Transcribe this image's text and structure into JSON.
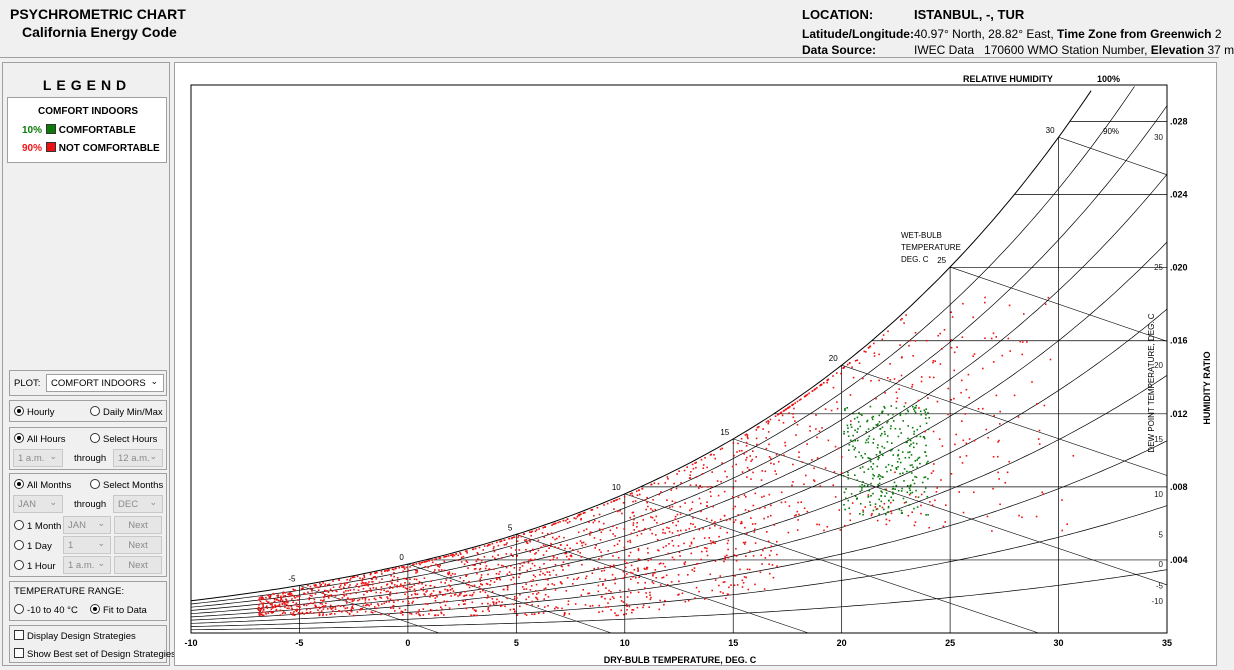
{
  "header": {
    "title_line1": "PSYCHROMETRIC CHART",
    "title_line2": "California Energy Code",
    "location_label": "LOCATION:",
    "location_value": "ISTANBUL, -, TUR",
    "latlon_label": "Latitude/Longitude:",
    "latlon_value": "40.97° North, 28.82° East,",
    "tz_label": "Time Zone from Greenwich",
    "tz_value": "2",
    "source_label": "Data Source:",
    "source_value": "IWEC Data",
    "station_value": "170600 WMO Station Number,",
    "elevation_label": "Elevation",
    "elevation_value": "37 m"
  },
  "legend": {
    "title": "LEGEND",
    "heading": "COMFORT INDOORS",
    "items": [
      {
        "pct": "10%",
        "label": "COMFORTABLE",
        "color": "#0b7a0b"
      },
      {
        "pct": "90%",
        "label": "NOT COMFORTABLE",
        "color": "#ee1111"
      }
    ]
  },
  "controls": {
    "plot_label": "PLOT:",
    "plot_value": "COMFORT INDOORS",
    "hourly": "Hourly",
    "daily": "Daily Min/Max",
    "all_hours": "All Hours",
    "select_hours": "Select Hours",
    "hour_from": "1 a.m.",
    "through": "through",
    "hour_to": "12 a.m.",
    "all_months": "All Months",
    "select_months": "Select Months",
    "month_from": "JAN",
    "month_to": "DEC",
    "one_month": "1 Month",
    "one_month_val": "JAN",
    "one_day": "1 Day",
    "one_day_val": "1",
    "one_hour": "1 Hour",
    "one_hour_val": "1 a.m.",
    "next": "Next",
    "temp_range_label": "TEMPERATURE RANGE:",
    "range_a": "-10 to 40 °C",
    "range_b": "Fit to Data",
    "design_strategies": "Display Design Strategies",
    "best_set": "Show Best set of Design Strategies"
  },
  "chart_data": {
    "type": "scatter",
    "xlabel": "DRY-BULB TEMPERATURE, DEG. C",
    "ylabel": "HUMIDITY RATIO",
    "dewpoint_label": "DEW POINT TEMPERATURE, DEG. C",
    "rh_label": "RELATIVE HUMIDITY",
    "rh_100": "100%",
    "rh_90": "90%",
    "wetbulb_label": [
      "WET-BULB",
      "TEMPERATURE",
      "DEG. C"
    ],
    "xlim": [
      -10,
      35
    ],
    "ylim": [
      0,
      0.03
    ],
    "x_ticks": [
      "-10",
      "-5",
      "0",
      "5",
      "10",
      "15",
      "20",
      "25",
      "30",
      "35"
    ],
    "y_ticks": [
      ".004",
      ".008",
      ".012",
      ".016",
      ".020",
      ".024",
      ".028"
    ],
    "wetbulb_ticks": [
      "-5",
      "0",
      "5",
      "10",
      "15",
      "20",
      "25",
      "30"
    ],
    "dewpoint_ticks": [
      "-10",
      "-5",
      "0",
      "5",
      "10",
      "15",
      "20",
      "25",
      "30"
    ],
    "series": [
      {
        "name": "COMFORTABLE",
        "color": "#0b7a0b",
        "share": 0.1,
        "region": {
          "x": [
            20,
            24
          ],
          "y": [
            0.0075,
            0.0125
          ]
        }
      },
      {
        "name": "NOT COMFORTABLE",
        "color": "#ee1111",
        "share": 0.9,
        "region": {
          "x": [
            -7,
            31
          ],
          "y": [
            0.001,
            0.0185
          ]
        }
      }
    ]
  }
}
